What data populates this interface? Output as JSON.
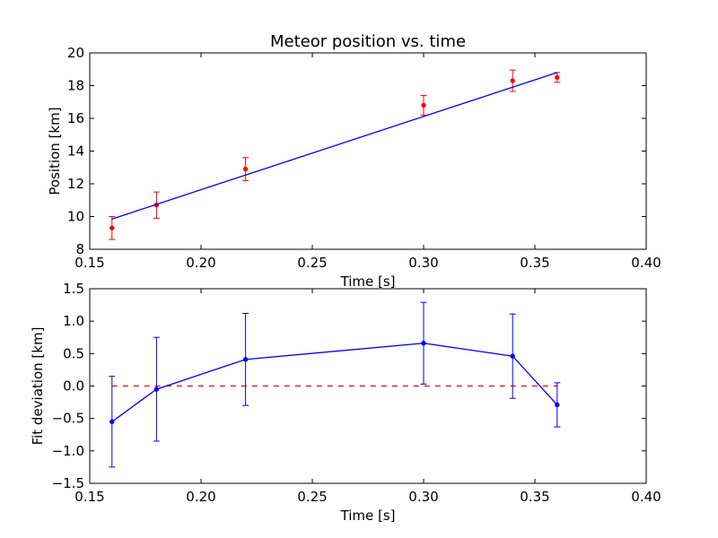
{
  "chart_data": [
    {
      "type": "scatter",
      "title": "Meteor position vs. time",
      "xlabel": "Time [s]",
      "ylabel": "Position [km]",
      "xlim": [
        0.15,
        0.4
      ],
      "ylim": [
        8,
        20
      ],
      "xticks": [
        "0.15",
        "0.20",
        "0.25",
        "0.30",
        "0.35",
        "0.40"
      ],
      "yticks": [
        "8",
        "10",
        "12",
        "14",
        "16",
        "18",
        "20"
      ],
      "xtick_values": [
        0.15,
        0.2,
        0.25,
        0.3,
        0.35,
        0.4
      ],
      "ytick_values": [
        8,
        10,
        12,
        14,
        16,
        18,
        20
      ],
      "grid": false,
      "series": [
        {
          "kind": "errorbar",
          "color": "#ff0000",
          "x": [
            0.16,
            0.18,
            0.22,
            0.3,
            0.34,
            0.36
          ],
          "y": [
            9.3,
            10.7,
            12.9,
            16.8,
            18.3,
            18.5
          ],
          "yerr": [
            0.7,
            0.8,
            0.7,
            0.6,
            0.65,
            0.3
          ]
        },
        {
          "kind": "line",
          "color": "#0000ff",
          "x": [
            0.16,
            0.36
          ],
          "y": [
            9.85,
            18.8
          ]
        }
      ]
    },
    {
      "type": "line",
      "title": "",
      "xlabel": "Time [s]",
      "ylabel": "Fit deviation [km]",
      "xlim": [
        0.15,
        0.4
      ],
      "ylim": [
        -1.5,
        1.5
      ],
      "xticks": [
        "0.15",
        "0.20",
        "0.25",
        "0.30",
        "0.35",
        "0.40"
      ],
      "yticks": [
        "−1.5",
        "−1.0",
        "−0.5",
        "0.0",
        "0.5",
        "1.0",
        "1.5"
      ],
      "xtick_values": [
        0.15,
        0.2,
        0.25,
        0.3,
        0.35,
        0.4
      ],
      "ytick_values": [
        -1.5,
        -1.0,
        -0.5,
        0.0,
        0.5,
        1.0,
        1.5
      ],
      "grid": false,
      "reference_line": {
        "y": 0.0,
        "x": [
          0.16,
          0.36
        ],
        "color": "#ff0000",
        "style": "dashed"
      },
      "series": [
        {
          "kind": "errorbar-line",
          "color": "#0000ff",
          "x": [
            0.16,
            0.18,
            0.22,
            0.3,
            0.34,
            0.36
          ],
          "y": [
            -0.55,
            -0.05,
            0.41,
            0.66,
            0.46,
            -0.29
          ],
          "yerr": [
            0.7,
            0.8,
            0.71,
            0.63,
            0.65,
            0.34
          ]
        }
      ]
    }
  ]
}
